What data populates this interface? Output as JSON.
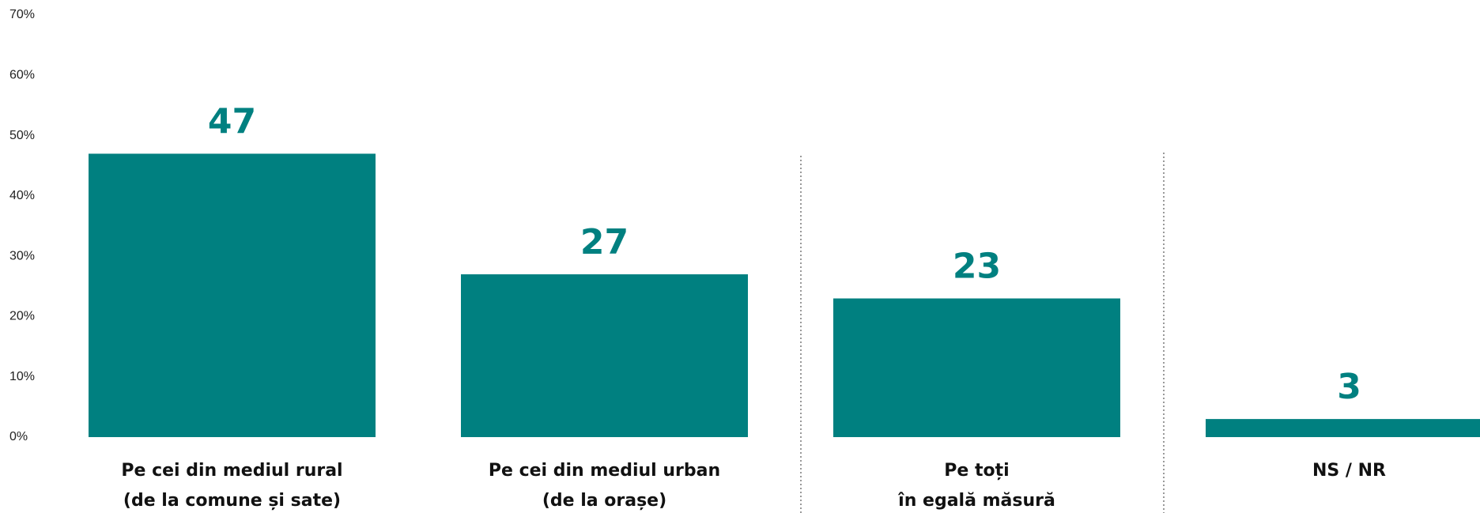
{
  "chart_data": {
    "type": "bar",
    "categories": [
      "Pe cei din mediul rural\n(de la comune și sate)",
      "Pe cei din mediul urban\n(de la orașe)",
      "Pe toți\nîn egală măsură",
      "NS / NR"
    ],
    "values": [
      47,
      27,
      23,
      3
    ],
    "color": "#008080",
    "ylim": [
      0,
      70
    ],
    "yticks": [
      {
        "value": 0,
        "label": "0%"
      },
      {
        "value": 10,
        "label": "10%"
      },
      {
        "value": 20,
        "label": "20%"
      },
      {
        "value": 30,
        "label": "30%"
      },
      {
        "value": 40,
        "label": "40%"
      },
      {
        "value": 50,
        "label": "50%"
      },
      {
        "value": 60,
        "label": "60%"
      },
      {
        "value": 70,
        "label": "70%"
      }
    ],
    "grid": false
  }
}
